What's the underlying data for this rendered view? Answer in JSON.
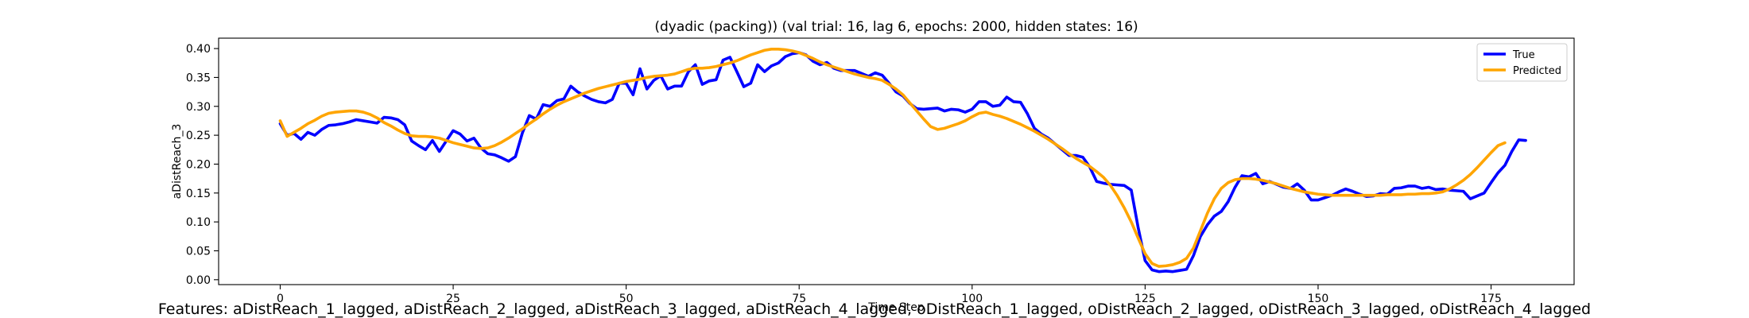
{
  "chart_data": {
    "type": "line",
    "title": "(dyadic (packing)) (val trial: 16, lag 6, epochs: 2000, hidden states: 16)",
    "xlabel": "Time Step",
    "ylabel": "aDistReach_3",
    "xlim": [
      -8.9,
      187.0
    ],
    "ylim": [
      -0.0085,
      0.418
    ],
    "xticks": [
      0,
      25,
      50,
      75,
      100,
      125,
      150,
      175
    ],
    "yticks": [
      0.0,
      0.05,
      0.1,
      0.15,
      0.2,
      0.25,
      0.3,
      0.35,
      0.4
    ],
    "ytick_labels": [
      "0.00",
      "0.05",
      "0.10",
      "0.15",
      "0.20",
      "0.25",
      "0.30",
      "0.35",
      "0.40"
    ],
    "legend_position": "top-right",
    "series": [
      {
        "name": "True",
        "color": "#0000ff",
        "x_start": 0,
        "values": [
          0.27,
          0.25,
          0.253,
          0.243,
          0.255,
          0.25,
          0.26,
          0.267,
          0.268,
          0.27,
          0.273,
          0.277,
          0.275,
          0.273,
          0.271,
          0.281,
          0.28,
          0.277,
          0.268,
          0.24,
          0.232,
          0.225,
          0.241,
          0.222,
          0.24,
          0.258,
          0.252,
          0.24,
          0.245,
          0.228,
          0.218,
          0.216,
          0.211,
          0.205,
          0.213,
          0.254,
          0.284,
          0.278,
          0.303,
          0.3,
          0.31,
          0.313,
          0.335,
          0.325,
          0.318,
          0.312,
          0.308,
          0.306,
          0.312,
          0.34,
          0.34,
          0.32,
          0.365,
          0.33,
          0.345,
          0.353,
          0.33,
          0.335,
          0.335,
          0.36,
          0.372,
          0.338,
          0.344,
          0.346,
          0.38,
          0.385,
          0.36,
          0.334,
          0.34,
          0.372,
          0.36,
          0.37,
          0.375,
          0.386,
          0.391,
          0.393,
          0.389,
          0.378,
          0.372,
          0.376,
          0.366,
          0.362,
          0.362,
          0.362,
          0.357,
          0.352,
          0.358,
          0.354,
          0.34,
          0.325,
          0.318,
          0.305,
          0.296,
          0.295,
          0.296,
          0.297,
          0.292,
          0.295,
          0.294,
          0.29,
          0.295,
          0.308,
          0.308,
          0.3,
          0.302,
          0.316,
          0.308,
          0.307,
          0.287,
          0.262,
          0.252,
          0.245,
          0.235,
          0.225,
          0.215,
          0.215,
          0.212,
          0.195,
          0.17,
          0.167,
          0.165,
          0.164,
          0.163,
          0.155,
          0.09,
          0.033,
          0.017,
          0.014,
          0.015,
          0.014,
          0.016,
          0.018,
          0.042,
          0.075,
          0.095,
          0.11,
          0.118,
          0.135,
          0.16,
          0.18,
          0.178,
          0.184,
          0.166,
          0.17,
          0.165,
          0.16,
          0.158,
          0.166,
          0.155,
          0.138,
          0.138,
          0.142,
          0.146,
          0.152,
          0.157,
          0.153,
          0.148,
          0.144,
          0.145,
          0.149,
          0.148,
          0.158,
          0.159,
          0.162,
          0.162,
          0.158,
          0.16,
          0.156,
          0.157,
          0.155,
          0.154,
          0.153,
          0.14,
          0.145,
          0.15,
          0.168,
          0.185,
          0.198,
          0.222,
          0.242,
          0.241
        ]
      },
      {
        "name": "Predicted",
        "color": "#ffa500",
        "x_start": 0,
        "values": [
          0.275,
          0.248,
          0.255,
          0.262,
          0.27,
          0.276,
          0.283,
          0.288,
          0.29,
          0.291,
          0.292,
          0.292,
          0.29,
          0.286,
          0.28,
          0.272,
          0.266,
          0.259,
          0.253,
          0.249,
          0.248,
          0.248,
          0.247,
          0.245,
          0.241,
          0.237,
          0.234,
          0.231,
          0.228,
          0.227,
          0.228,
          0.232,
          0.238,
          0.245,
          0.253,
          0.261,
          0.27,
          0.278,
          0.287,
          0.295,
          0.302,
          0.308,
          0.313,
          0.318,
          0.323,
          0.327,
          0.331,
          0.334,
          0.337,
          0.34,
          0.343,
          0.345,
          0.347,
          0.35,
          0.352,
          0.353,
          0.354,
          0.356,
          0.36,
          0.364,
          0.366,
          0.366,
          0.367,
          0.369,
          0.372,
          0.375,
          0.379,
          0.384,
          0.389,
          0.393,
          0.397,
          0.399,
          0.399,
          0.398,
          0.396,
          0.393,
          0.388,
          0.383,
          0.377,
          0.372,
          0.368,
          0.364,
          0.36,
          0.356,
          0.353,
          0.35,
          0.348,
          0.345,
          0.338,
          0.33,
          0.32,
          0.306,
          0.292,
          0.278,
          0.265,
          0.26,
          0.262,
          0.266,
          0.27,
          0.275,
          0.282,
          0.288,
          0.29,
          0.286,
          0.283,
          0.279,
          0.274,
          0.269,
          0.263,
          0.257,
          0.25,
          0.243,
          0.235,
          0.227,
          0.218,
          0.21,
          0.203,
          0.196,
          0.187,
          0.177,
          0.163,
          0.145,
          0.124,
          0.1,
          0.072,
          0.045,
          0.028,
          0.023,
          0.024,
          0.026,
          0.03,
          0.037,
          0.055,
          0.085,
          0.115,
          0.14,
          0.158,
          0.168,
          0.173,
          0.175,
          0.175,
          0.174,
          0.172,
          0.169,
          0.166,
          0.162,
          0.158,
          0.155,
          0.152,
          0.15,
          0.148,
          0.147,
          0.146,
          0.146,
          0.146,
          0.146,
          0.146,
          0.146,
          0.146,
          0.146,
          0.147,
          0.147,
          0.147,
          0.148,
          0.148,
          0.149,
          0.149,
          0.15,
          0.152,
          0.157,
          0.164,
          0.172,
          0.182,
          0.194,
          0.207,
          0.22,
          0.232,
          0.237
        ]
      }
    ]
  },
  "footer": {
    "features": "Features: aDistReach_1_lagged, aDistReach_2_lagged, aDistReach_3_lagged, aDistReach_4_lagged, oDistReach_1_lagged, oDistReach_2_lagged, oDistReach_3_lagged, oDistReach_4_lagged"
  }
}
